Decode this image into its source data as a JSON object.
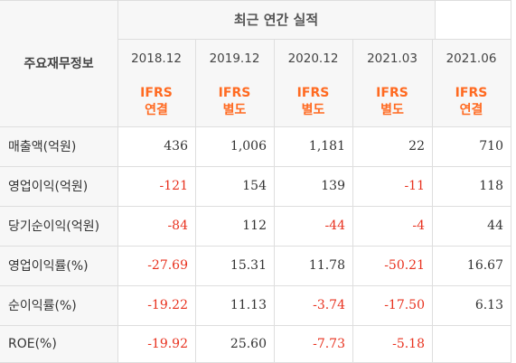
{
  "table_title": "최근 연간 실적",
  "row_header_title": "주요재무정보",
  "colors": {
    "standard": "#ff6a21",
    "negative": "#e8321f",
    "positive": "#333333",
    "header_bg": "#f7f7f7"
  },
  "columns": [
    {
      "period": "2018.12",
      "std_line1": "IFRS",
      "std_line2": "연결"
    },
    {
      "period": "2019.12",
      "std_line1": "IFRS",
      "std_line2": "별도"
    },
    {
      "period": "2020.12",
      "std_line1": "IFRS",
      "std_line2": "별도"
    },
    {
      "period": "2021.03",
      "std_line1": "IFRS",
      "std_line2": "별도"
    },
    {
      "period": "2021.06",
      "std_line1": "IFRS",
      "std_line2": "연결"
    }
  ],
  "rows": [
    {
      "label": "매출액(억원)",
      "values": [
        "436",
        "1,006",
        "1,181",
        "22",
        "710"
      ]
    },
    {
      "label": "영업이익(억원)",
      "values": [
        "-121",
        "154",
        "139",
        "-11",
        "118"
      ]
    },
    {
      "label": "당기순이익(억원)",
      "values": [
        "-84",
        "112",
        "-44",
        "-4",
        "44"
      ]
    },
    {
      "label": "영업이익률(%)",
      "values": [
        "-27.69",
        "15.31",
        "11.78",
        "-50.21",
        "16.67"
      ]
    },
    {
      "label": "순이익률(%)",
      "values": [
        "-19.22",
        "11.13",
        "-3.74",
        "-17.50",
        "6.13"
      ]
    },
    {
      "label": "ROE(%)",
      "values": [
        "-19.92",
        "25.60",
        "-7.73",
        "-5.18",
        ""
      ]
    }
  ]
}
